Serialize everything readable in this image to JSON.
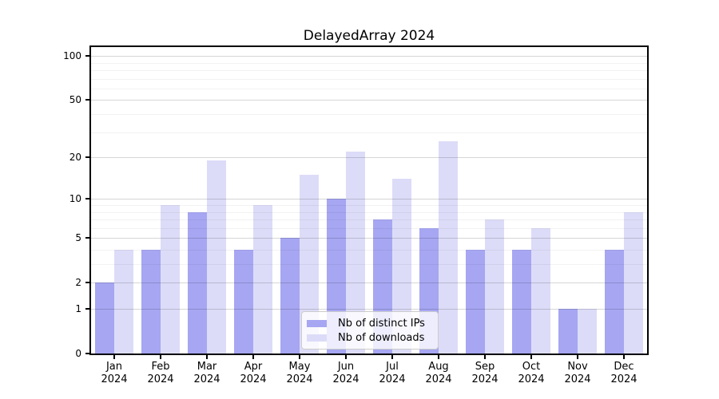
{
  "chart_data": {
    "type": "bar",
    "title": "DelayedArray 2024",
    "categories": [
      "Jan",
      "Feb",
      "Mar",
      "Apr",
      "May",
      "Jun",
      "Jul",
      "Aug",
      "Sep",
      "Oct",
      "Nov",
      "Dec"
    ],
    "category_sublabel": "2024",
    "series": [
      {
        "name": "Nb of distinct IPs",
        "color": "#a6a6f2",
        "values": [
          2,
          4,
          8,
          4,
          5,
          10,
          7,
          6,
          4,
          4,
          1,
          4
        ]
      },
      {
        "name": "Nb of downloads",
        "color": "#dcdcf8",
        "values": [
          4,
          9,
          19,
          9,
          15,
          22,
          14,
          26,
          7,
          6,
          1,
          8
        ]
      }
    ],
    "yscale": "log1p",
    "yticks": [
      0,
      1,
      2,
      5,
      10,
      20,
      50,
      100
    ],
    "minor_yticks": [
      3,
      4,
      6,
      7,
      8,
      9,
      30,
      40,
      60,
      70,
      80,
      90
    ],
    "ylim": [
      0,
      115
    ],
    "xlabel": "",
    "ylabel": "",
    "grid": true,
    "legend_position": "lower center"
  },
  "colors": {
    "background": "#ffffff",
    "spine": "#000000",
    "major_grid_rgba": "rgba(0,0,0,0.16)",
    "minor_grid_rgba": "rgba(0,0,0,0.05)",
    "text": "#000000",
    "legend_border": "#cccccc"
  }
}
